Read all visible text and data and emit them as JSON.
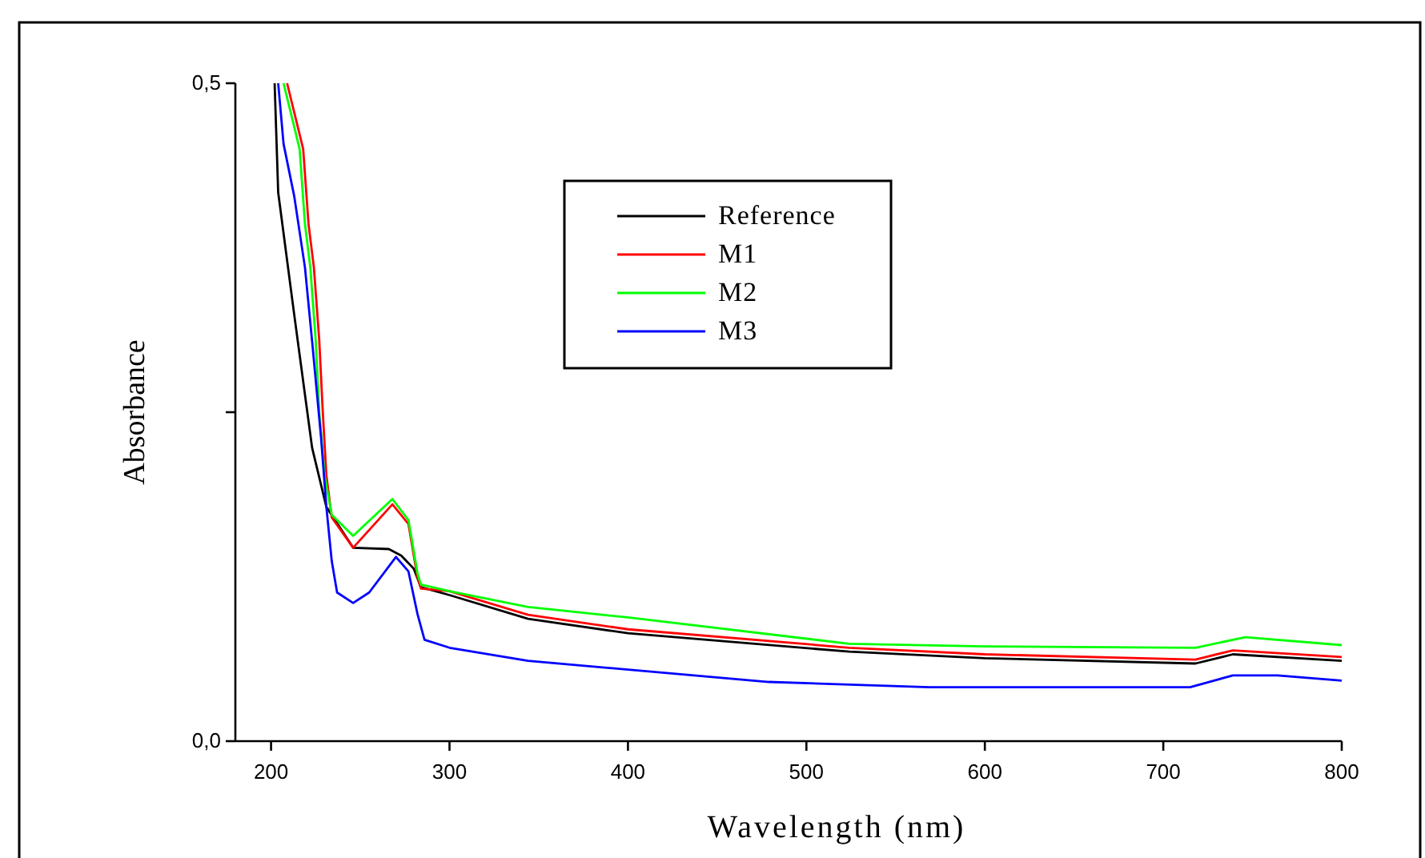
{
  "chart_data": {
    "type": "line",
    "xlabel": "Wavelength (nm)",
    "ylabel": "Absorbance",
    "xlim": [
      180,
      800
    ],
    "ylim": [
      0,
      0.5
    ],
    "xticks": [
      200,
      300,
      400,
      500,
      600,
      700,
      800
    ],
    "yticks": [
      {
        "value": 0,
        "label": "0,0"
      },
      {
        "value": 0.25,
        "label": null
      },
      {
        "value": 0.5,
        "label": "0,5"
      }
    ],
    "legend": "top",
    "grid": false,
    "line_style": "solid",
    "marker": "none",
    "series": [
      {
        "name": "Reference",
        "color": "#000000",
        "x": [
          202,
          204,
          213,
          223,
          231,
          246,
          266,
          273,
          280,
          284,
          300,
          344,
          400,
          524,
          600,
          718,
          739,
          800
        ],
        "values": [
          0.5,
          0.417,
          0.324,
          0.223,
          0.178,
          0.147,
          0.146,
          0.141,
          0.131,
          0.117,
          0.111,
          0.093,
          0.082,
          0.068,
          0.063,
          0.059,
          0.066,
          0.061
        ]
      },
      {
        "name": "M1",
        "color": "#ff0000",
        "x": [
          209,
          218,
          221,
          224,
          227,
          229,
          231,
          234,
          246,
          268,
          277,
          282,
          284,
          300,
          344,
          400,
          524,
          600,
          718,
          739,
          800
        ],
        "values": [
          0.5,
          0.45,
          0.393,
          0.36,
          0.305,
          0.25,
          0.202,
          0.17,
          0.147,
          0.18,
          0.165,
          0.125,
          0.116,
          0.114,
          0.096,
          0.085,
          0.071,
          0.066,
          0.062,
          0.069,
          0.064
        ]
      },
      {
        "name": "M2",
        "color": "#00ff00",
        "x": [
          207,
          216,
          219,
          222,
          225,
          227,
          230,
          234,
          246,
          268,
          277,
          282,
          284,
          300,
          344,
          400,
          524,
          600,
          718,
          746,
          800
        ],
        "values": [
          0.5,
          0.45,
          0.393,
          0.36,
          0.305,
          0.25,
          0.202,
          0.172,
          0.156,
          0.184,
          0.168,
          0.128,
          0.119,
          0.114,
          0.102,
          0.094,
          0.074,
          0.072,
          0.071,
          0.079,
          0.073
        ]
      },
      {
        "name": "M3",
        "color": "#0000ff",
        "x": [
          204,
          207,
          213,
          219,
          223,
          228,
          231,
          234,
          237,
          246,
          255,
          270,
          277,
          282,
          286,
          300,
          344,
          479,
          569,
          715,
          739,
          764,
          800
        ],
        "values": [
          0.5,
          0.454,
          0.414,
          0.36,
          0.304,
          0.231,
          0.178,
          0.137,
          0.113,
          0.105,
          0.113,
          0.14,
          0.129,
          0.097,
          0.077,
          0.071,
          0.061,
          0.045,
          0.041,
          0.041,
          0.05,
          0.05,
          0.046
        ]
      }
    ]
  }
}
